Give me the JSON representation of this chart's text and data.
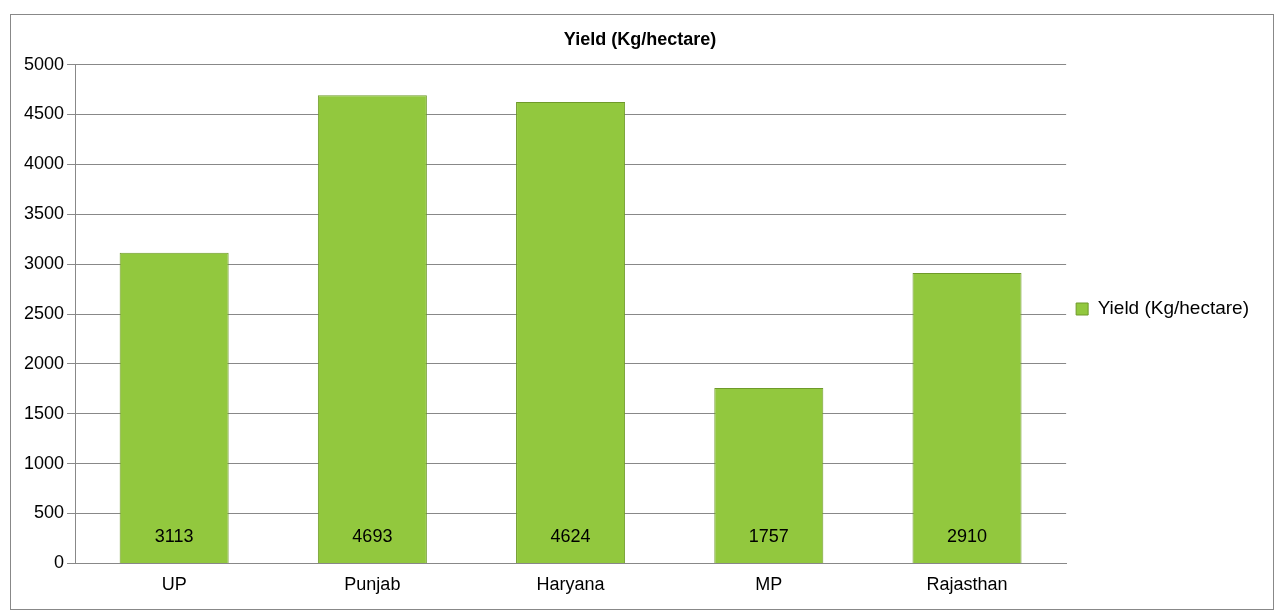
{
  "chart_data": {
    "type": "bar",
    "title": "Yield (Kg/hectare)",
    "categories": [
      "UP",
      "Punjab",
      "Haryana",
      "MP",
      "Rajasthan"
    ],
    "series": [
      {
        "name": "Yield (Kg/hectare)",
        "color": "#92c83e",
        "values": [
          3113,
          4693,
          4624,
          1757,
          2910
        ]
      }
    ],
    "ylim": [
      0,
      5000
    ],
    "yticks": [
      0,
      500,
      1000,
      1500,
      2000,
      2500,
      3000,
      3500,
      4000,
      4500,
      5000
    ],
    "grid": "y",
    "legend": "right",
    "data_labels": true
  }
}
